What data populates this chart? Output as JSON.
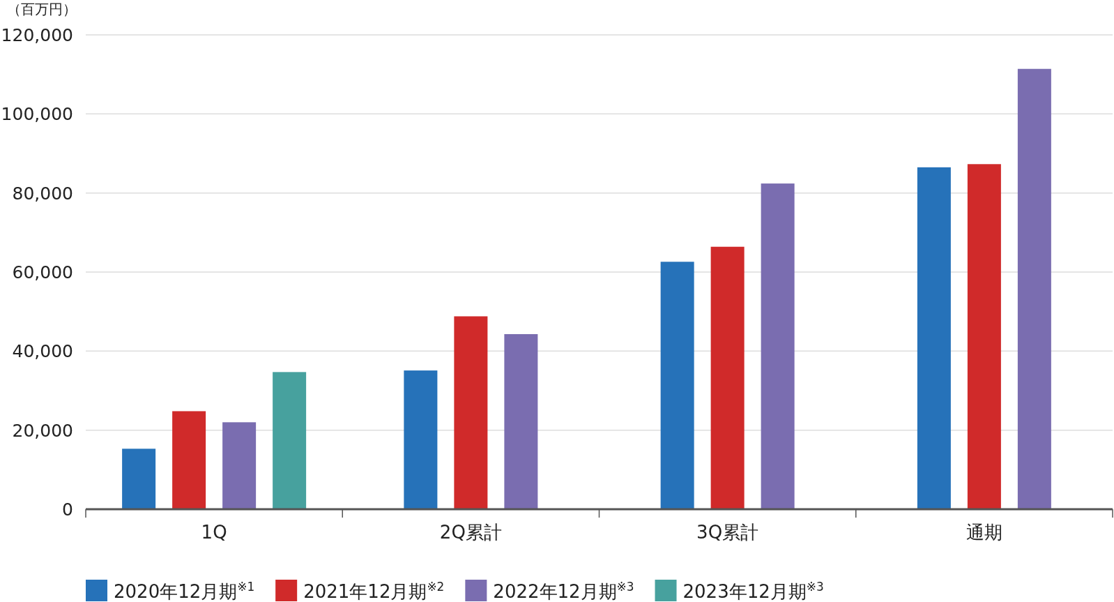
{
  "chart_data": {
    "type": "bar",
    "ylabel": "（百万円）",
    "categories": [
      "1Q",
      "2Q累計",
      "3Q累計",
      "通期"
    ],
    "series": [
      {
        "name": "2020年12月期$^{※1}$",
        "color": "#2672b9",
        "values": [
          15300,
          35100,
          62600,
          86500
        ]
      },
      {
        "name": "2021年12月期$^{※2}$",
        "color": "#d02a2a",
        "values": [
          24800,
          48800,
          66400,
          87300
        ]
      },
      {
        "name": "2022年12月期$^{※3}$",
        "color": "#7a6db0",
        "values": [
          22000,
          44300,
          82400,
          111400
        ]
      },
      {
        "name": "2023年12月期$^{※3}$",
        "color": "#47a19e",
        "values": [
          34700,
          null,
          null,
          null
        ]
      }
    ],
    "ylim": [
      0,
      120000
    ],
    "yticks": [
      0,
      {
        "value": 20000,
        "label": "20,000"
      },
      {
        "value": 40000,
        "label": "40,000"
      },
      {
        "value": 60000,
        "label": "60,000"
      },
      {
        "value": 80000,
        "label": "80,000"
      },
      {
        "value": 100000,
        "label": "100,000"
      },
      {
        "value": 120000,
        "label": "120,000"
      }
    ],
    "grid": "y",
    "legend": "bottom left"
  }
}
